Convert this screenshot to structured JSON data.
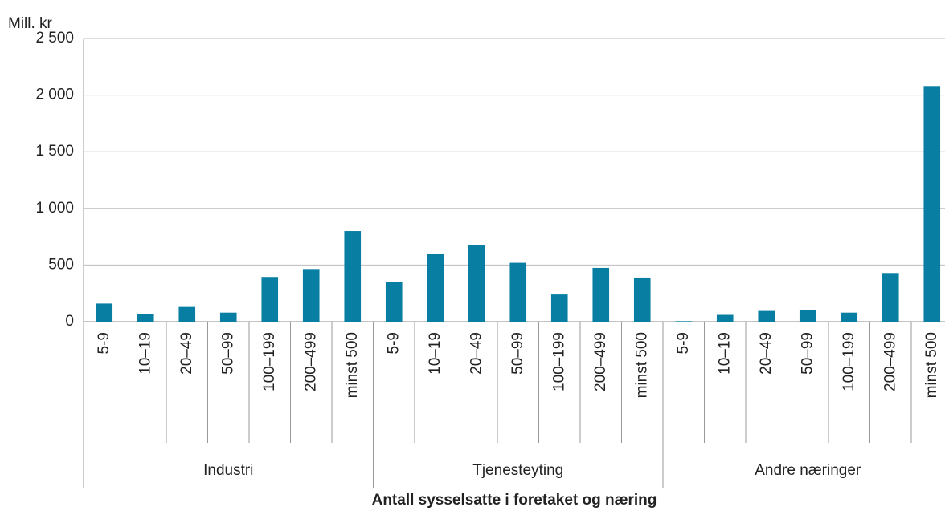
{
  "chart_data": {
    "type": "bar",
    "y_unit": "Mill. kr",
    "x_label": "Antall sysselsatte i foretaket og næring",
    "color": "#077ea2",
    "grid": true,
    "ylim": [
      0,
      2500
    ],
    "yticks": [
      0,
      500,
      {
        "value": 1000,
        "label": "1 000"
      },
      {
        "value": 1500,
        "label": "1 500"
      },
      {
        "value": 2000,
        "label": "2 000"
      },
      {
        "value": 2500,
        "label": "2 500"
      }
    ],
    "groups": [
      {
        "name": "Industri",
        "categories": [
          "5-9",
          "10–19",
          "20–49",
          "50–99",
          "100–199",
          "200–499",
          "minst 500"
        ],
        "values": [
          160,
          65,
          130,
          80,
          395,
          465,
          800
        ]
      },
      {
        "name": "Tjenesteyting",
        "categories": [
          "5-9",
          "10–19",
          "20–49",
          "50–99",
          "100–199",
          "200–499",
          "minst 500"
        ],
        "values": [
          350,
          595,
          680,
          520,
          240,
          475,
          390
        ]
      },
      {
        "name": "Andre næringer",
        "categories": [
          "5-9",
          "10–19",
          "20–49",
          "50–99",
          "100–199",
          "200–499",
          "minst 500"
        ],
        "values": [
          5,
          60,
          95,
          105,
          80,
          430,
          2080
        ]
      }
    ]
  }
}
